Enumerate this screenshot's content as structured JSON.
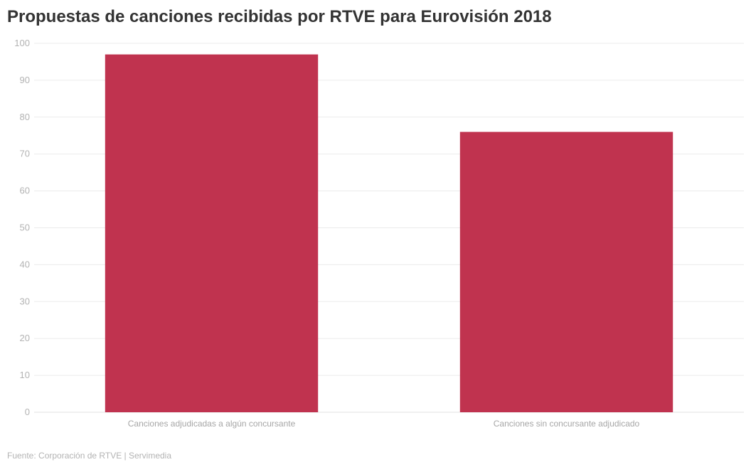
{
  "title": "Propuestas de canciones recibidas por RTVE para Eurovisión 2018",
  "source": "Fuente: Corporación de RTVE | Servimedia",
  "colors": {
    "bar": "#c0334f"
  },
  "chart_data": {
    "type": "bar",
    "categories": [
      "Canciones adjudicadas a algún concursante",
      "Canciones sin concursante adjudicado"
    ],
    "values": [
      97,
      76
    ],
    "ylim": [
      0,
      100
    ],
    "yticks": [
      0,
      10,
      20,
      30,
      40,
      50,
      60,
      70,
      80,
      90,
      100
    ],
    "grid": true,
    "legend": "none"
  }
}
